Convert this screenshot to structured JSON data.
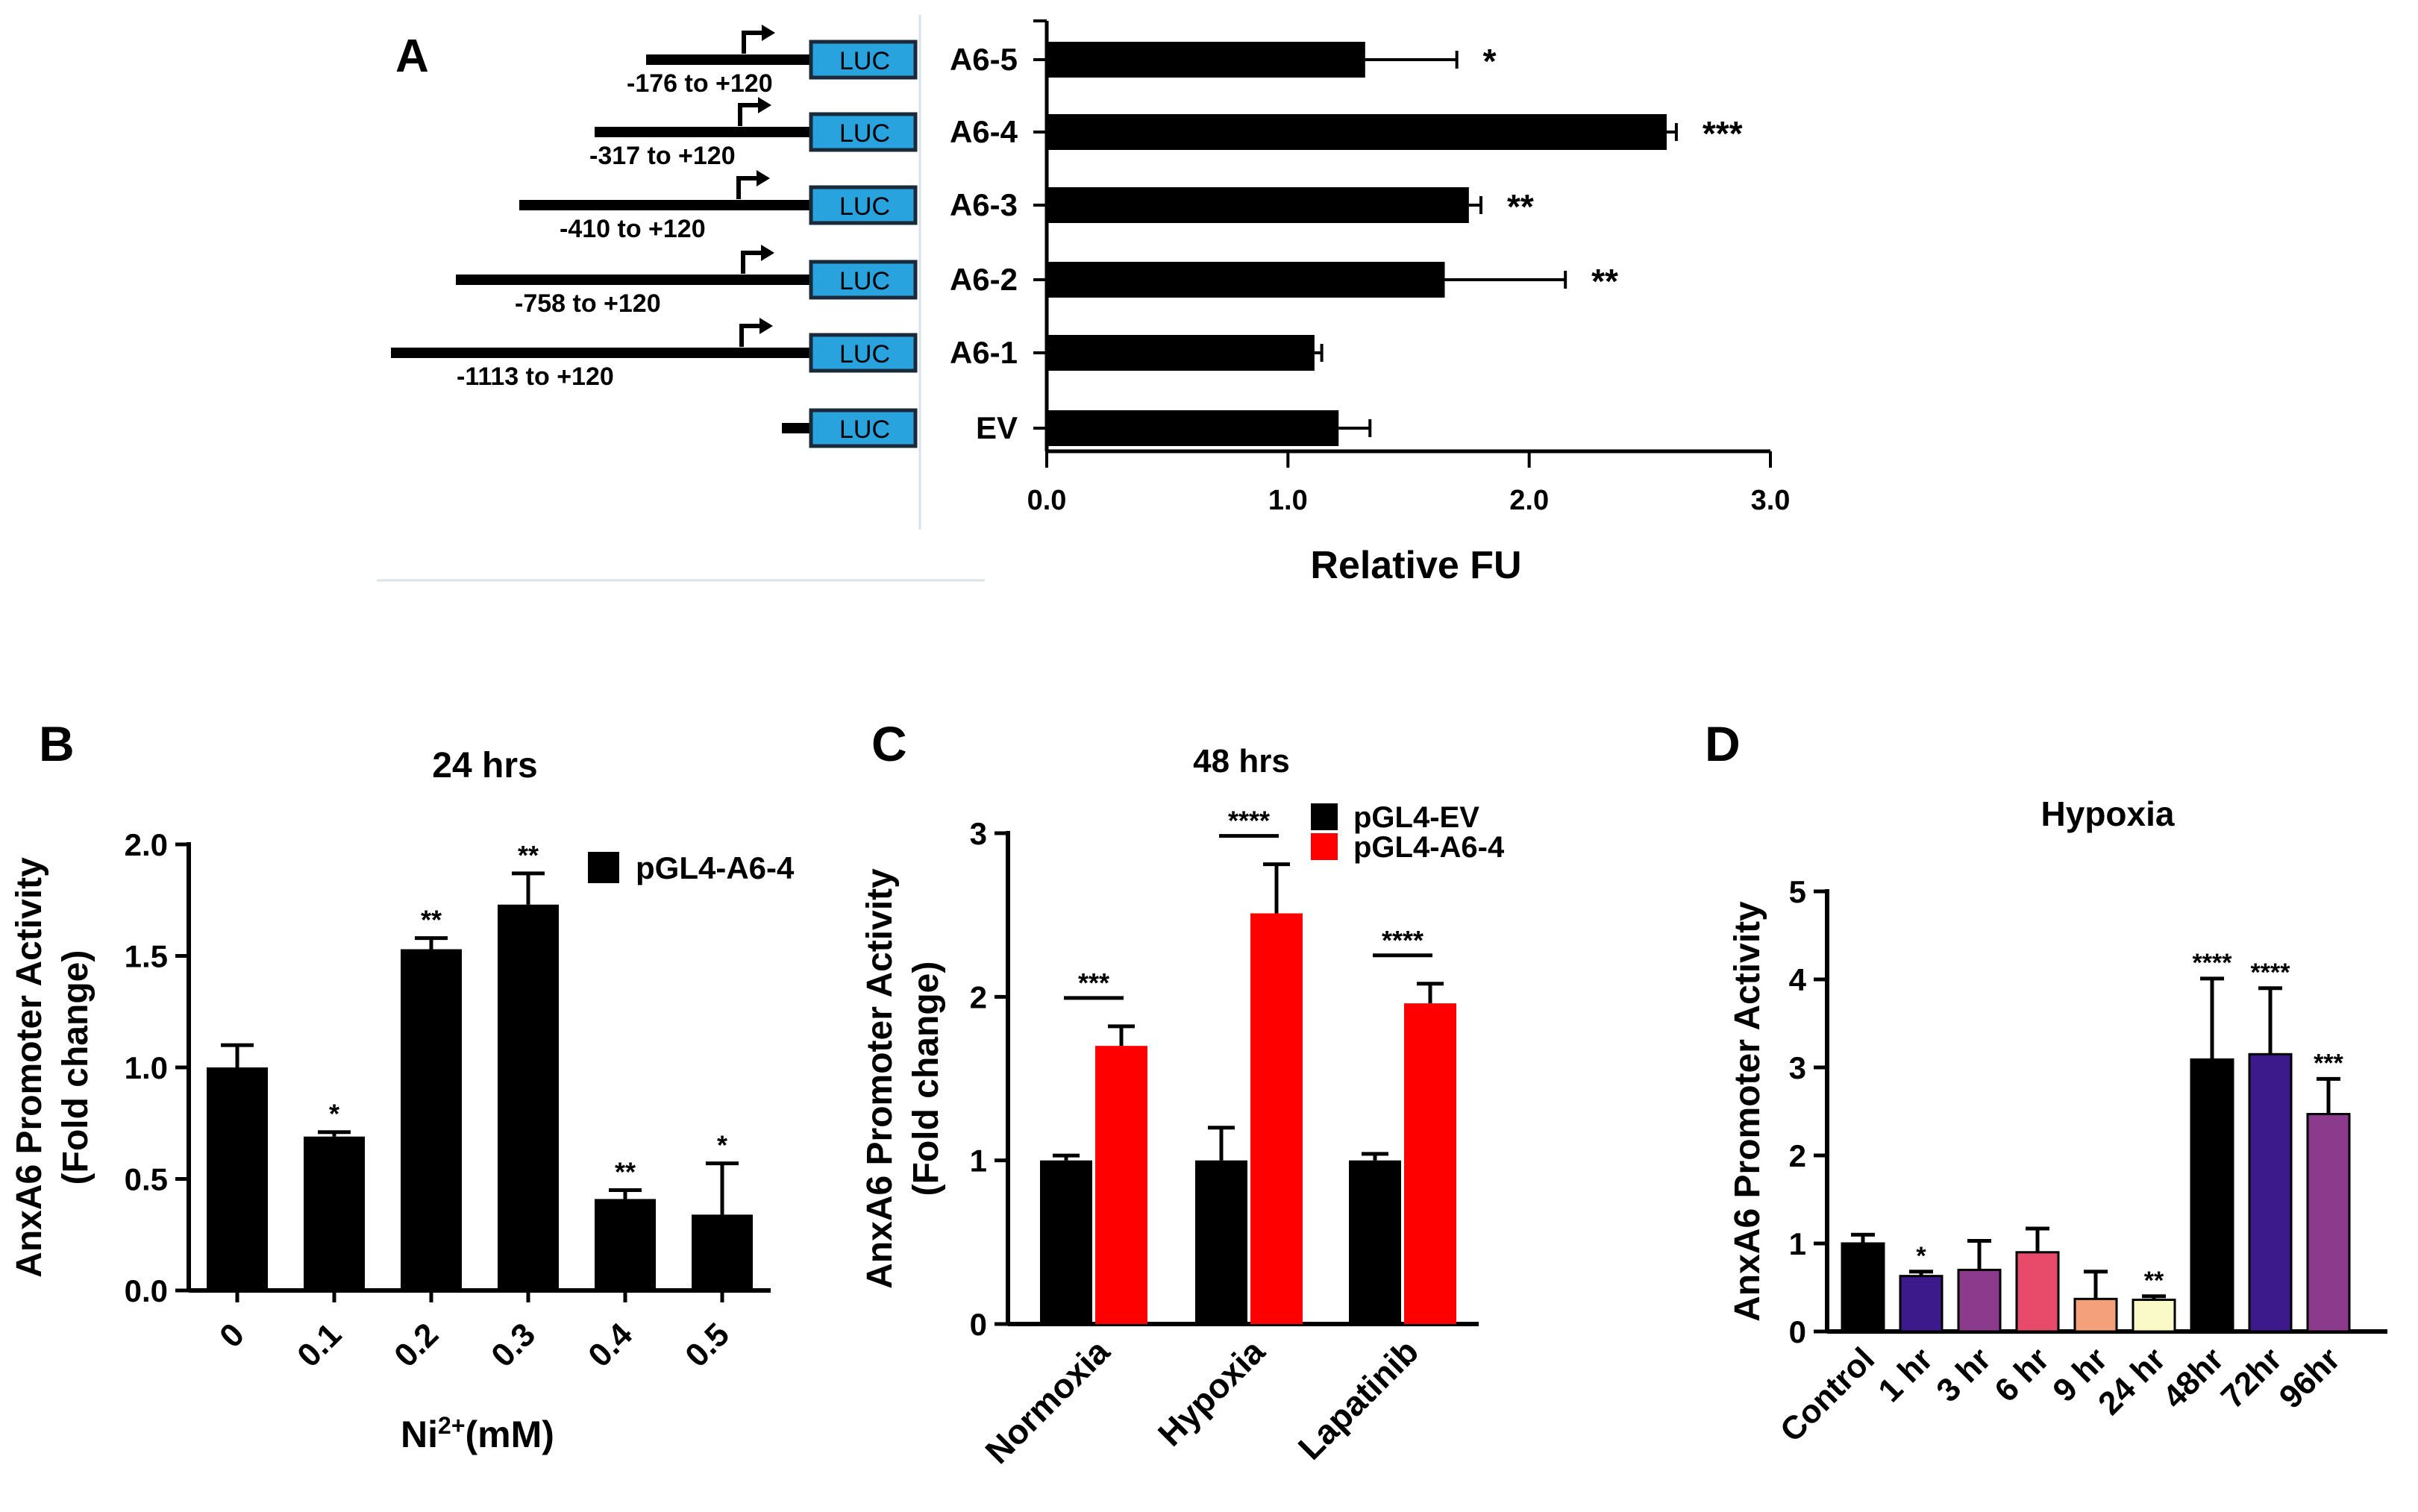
{
  "chart_data": [
    {
      "type": "bar",
      "panel_label": "A",
      "orientation": "horizontal",
      "categories": [
        "A6-5",
        "A6-4",
        "A6-3",
        "A6-2",
        "A6-1",
        "EV"
      ],
      "constructs": [
        "-176 to +120",
        "-317 to +120",
        "-410 to +120",
        "-758 to +120",
        "-1113 to +120",
        ""
      ],
      "construct_start_bp": [
        -176,
        -317,
        -410,
        -758,
        -1113,
        0
      ],
      "reporter_label": "LUC",
      "values": [
        1.32,
        2.57,
        1.75,
        1.65,
        1.11,
        1.21
      ],
      "errors": [
        0.38,
        0.04,
        0.05,
        0.5,
        0.03,
        0.13
      ],
      "significance": [
        "*",
        "***",
        "**",
        "**",
        "",
        ""
      ],
      "xlabel": "Relative FU",
      "xlim": [
        0,
        3
      ],
      "xticks": [
        "0.0",
        "1.0",
        "2.0",
        "3.0"
      ],
      "colors": {
        "bar": "#000000",
        "luc_box": "#29a3dd"
      }
    },
    {
      "type": "bar",
      "panel_label": "B",
      "title": "24 hrs",
      "categories": [
        "0",
        "0.1",
        "0.2",
        "0.3",
        "0.4",
        "0.5"
      ],
      "values": [
        1.0,
        0.69,
        1.53,
        1.73,
        0.41,
        0.34
      ],
      "errors": [
        0.1,
        0.02,
        0.05,
        0.14,
        0.04,
        0.23
      ],
      "significance": [
        "",
        "*",
        "**",
        "**",
        "**",
        "*"
      ],
      "legend": [
        "pGL4-A6-4"
      ],
      "xlabel_main": "Ni",
      "xlabel_sup": "2+",
      "xlabel_tail": "(mM)",
      "ylabel": [
        "AnxA6 Promoter Activity",
        "(Fold change)"
      ],
      "ylim": [
        0,
        2
      ],
      "yticks": [
        "0.0",
        "0.5",
        "1.0",
        "1.5",
        "2.0"
      ],
      "colors": {
        "bar": "#000000"
      }
    },
    {
      "type": "bar",
      "panel_label": "C",
      "title": "48 hrs",
      "categories": [
        "Normoxia",
        "Hypoxia",
        "Lapatinib"
      ],
      "series": [
        {
          "name": "pGL4-EV",
          "values": [
            1.0,
            1.0,
            1.0
          ],
          "errors": [
            0.03,
            0.2,
            0.04
          ],
          "color": "#000000"
        },
        {
          "name": "pGL4-A6-4",
          "values": [
            1.7,
            2.51,
            1.96
          ],
          "errors": [
            0.12,
            0.3,
            0.12
          ],
          "color": "#ff0000"
        }
      ],
      "significance": [
        "***",
        "****",
        "****"
      ],
      "ylabel": [
        "AnxA6 Promoter Activity",
        "(Fold change)"
      ],
      "ylim": [
        0,
        3
      ],
      "yticks": [
        "0",
        "1",
        "2",
        "3"
      ]
    },
    {
      "type": "bar",
      "panel_label": "D",
      "title": "Hypoxia",
      "categories": [
        "Control",
        "1 hr",
        "3 hr",
        "6 hr",
        "9 hr",
        "24 hr",
        "48hr",
        "72hr",
        "96hr"
      ],
      "values": [
        1.0,
        0.63,
        0.7,
        0.9,
        0.37,
        0.36,
        3.09,
        3.15,
        2.47
      ],
      "errors": [
        0.1,
        0.05,
        0.33,
        0.27,
        0.31,
        0.04,
        0.92,
        0.75,
        0.4
      ],
      "significance": [
        "",
        "*",
        "",
        "",
        "",
        "**",
        "****",
        "****",
        "***"
      ],
      "colors": [
        "#000000",
        "#3d1a8c",
        "#8c3a8c",
        "#e84a6a",
        "#f4a07a",
        "#fafac8",
        "#000000",
        "#3d1a8c",
        "#8c3a8c"
      ],
      "ylabel": [
        "AnxA6 Promoter Activity"
      ],
      "ylim": [
        0,
        5
      ],
      "yticks": [
        "0",
        "1",
        "2",
        "3",
        "4",
        "5"
      ]
    }
  ]
}
